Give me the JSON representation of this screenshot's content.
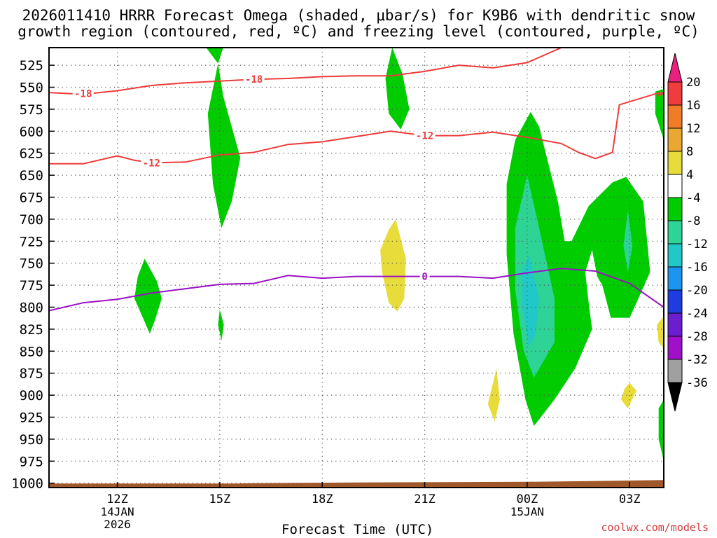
{
  "title": {
    "line1": "2026011410 HRRR Forecast Omega (shaded, μbar/s) for K9B6 with dendritic snow",
    "line2": "growth region (contoured, red, ºC) and freezing level (contoured, purple, ºC)"
  },
  "xlabel": "Forecast Time (UTC)",
  "credit": "coolwx.com/models",
  "chart_data": {
    "type": "time-height cross section",
    "station": "K9B6",
    "run": "2026011410",
    "model": "HRRR",
    "x_start_hour": 10,
    "x_end_hour": 28,
    "y_range_hPa": [
      1005,
      505
    ],
    "y_ticks": [
      525,
      550,
      575,
      600,
      625,
      650,
      675,
      700,
      725,
      750,
      775,
      800,
      825,
      850,
      875,
      900,
      925,
      950,
      975,
      1000
    ],
    "x_ticks": [
      {
        "hour": 12,
        "label": "12Z",
        "sub1": "14JAN",
        "sub2": "2026"
      },
      {
        "hour": 15,
        "label": "15Z",
        "sub1": "",
        "sub2": ""
      },
      {
        "hour": 18,
        "label": "18Z",
        "sub1": "",
        "sub2": ""
      },
      {
        "hour": 21,
        "label": "21Z",
        "sub1": "",
        "sub2": ""
      },
      {
        "hour": 24,
        "label": "00Z",
        "sub1": "15JAN",
        "sub2": ""
      },
      {
        "hour": 27,
        "label": "03Z",
        "sub1": "",
        "sub2": ""
      }
    ],
    "colorbar": {
      "labels": [
        "20",
        "16",
        "12",
        "8",
        "4",
        "-4",
        "-8",
        "-12",
        "-16",
        "-20",
        "-24",
        "-28",
        "-32",
        "-36"
      ],
      "colors": [
        "#e8207e",
        "#f03c3c",
        "#f07c28",
        "#e8a832",
        "#e8dc3a",
        "#ffffff",
        "#00cc00",
        "#2ed496",
        "#20c8c8",
        "#1a96f0",
        "#1e3ce0",
        "#6a1ed0",
        "#a010c8",
        "#a0a0a0",
        "#000000"
      ]
    },
    "contours": [
      {
        "name": "dendritic-top-minus18",
        "label": "-18",
        "color": "#ee3b3b",
        "points": [
          [
            10,
            556
          ],
          [
            11,
            558
          ],
          [
            12,
            554
          ],
          [
            13,
            548
          ],
          [
            14,
            545
          ],
          [
            15,
            543
          ],
          [
            16,
            541
          ],
          [
            17,
            540
          ],
          [
            18,
            538
          ],
          [
            19,
            537
          ],
          [
            20,
            537
          ],
          [
            21,
            532
          ],
          [
            22,
            525
          ],
          [
            23,
            528
          ],
          [
            24,
            522
          ],
          [
            25,
            505
          ]
        ],
        "label_positions": [
          [
            11,
            557
          ],
          [
            16,
            541
          ]
        ]
      },
      {
        "name": "dendritic-right-minus18",
        "label": "",
        "color": "#ee3b3b",
        "points": [
          [
            27.8,
            560
          ],
          [
            28,
            557
          ]
        ],
        "label_positions": []
      },
      {
        "name": "dendritic-bottom-minus12",
        "label": "-12",
        "color": "#ee3b3b",
        "points": [
          [
            10,
            637
          ],
          [
            11,
            637
          ],
          [
            12,
            628
          ],
          [
            12.5,
            633
          ],
          [
            13,
            636
          ],
          [
            14,
            635
          ],
          [
            15,
            627
          ],
          [
            16,
            624
          ],
          [
            17,
            615
          ],
          [
            18,
            612
          ],
          [
            19,
            606
          ],
          [
            20,
            600
          ],
          [
            21,
            605
          ],
          [
            22,
            605
          ],
          [
            23,
            601
          ],
          [
            24,
            607
          ],
          [
            25,
            614
          ],
          [
            25.5,
            624
          ],
          [
            26,
            631
          ],
          [
            26.5,
            624
          ],
          [
            26.7,
            570
          ],
          [
            27.8,
            557
          ],
          [
            28,
            556
          ]
        ],
        "label_positions": [
          [
            13,
            636
          ],
          [
            21,
            605
          ]
        ]
      },
      {
        "name": "freezing-level-0",
        "label": "0",
        "color": "#9a10c4",
        "points": [
          [
            10,
            804
          ],
          [
            11,
            795
          ],
          [
            12,
            791
          ],
          [
            13,
            784
          ],
          [
            14,
            779
          ],
          [
            15,
            774
          ],
          [
            16,
            773
          ],
          [
            17,
            764
          ],
          [
            18,
            767
          ],
          [
            19,
            765
          ],
          [
            20,
            765
          ],
          [
            21,
            765
          ],
          [
            22,
            765
          ],
          [
            23,
            767
          ],
          [
            24,
            761
          ],
          [
            25,
            756
          ],
          [
            26,
            759
          ],
          [
            27,
            773
          ],
          [
            28,
            800
          ]
        ],
        "label_positions": [
          [
            21,
            765
          ]
        ]
      }
    ],
    "shaded_regions": [
      {
        "name": "green-15z-upper",
        "value": "-4 to -8",
        "color": "#00cc00",
        "points": [
          [
            14.6,
            505
          ],
          [
            15.1,
            505
          ],
          [
            14.95,
            523
          ],
          [
            15.1,
            560
          ],
          [
            15.6,
            630
          ],
          [
            15.35,
            680
          ],
          [
            15.05,
            710
          ],
          [
            14.8,
            660
          ],
          [
            14.65,
            580
          ],
          [
            14.95,
            523
          ]
        ]
      },
      {
        "name": "green-15z-small",
        "value": "-4 to -8",
        "color": "#00cc00",
        "points": [
          [
            15,
            803
          ],
          [
            15.12,
            820
          ],
          [
            15.05,
            838
          ],
          [
            14.95,
            820
          ]
        ]
      },
      {
        "name": "green-13z",
        "value": "-4 to -8",
        "color": "#00cc00",
        "points": [
          [
            12.8,
            745
          ],
          [
            13.15,
            770
          ],
          [
            13.3,
            790
          ],
          [
            13.1,
            815
          ],
          [
            12.95,
            830
          ],
          [
            12.75,
            812
          ],
          [
            12.5,
            790
          ],
          [
            12.6,
            765
          ]
        ]
      },
      {
        "name": "green-20z",
        "value": "-4 to -8",
        "color": "#00cc00",
        "points": [
          [
            20.05,
            505
          ],
          [
            20.35,
            535
          ],
          [
            20.55,
            575
          ],
          [
            20.3,
            598
          ],
          [
            19.95,
            580
          ],
          [
            19.85,
            540
          ]
        ]
      },
      {
        "name": "yellow-19z",
        "value": "4 to 8",
        "color": "#e8dc3a",
        "points": [
          [
            20.15,
            700
          ],
          [
            20.45,
            745
          ],
          [
            20.4,
            790
          ],
          [
            20.2,
            805
          ],
          [
            19.95,
            795
          ],
          [
            19.75,
            760
          ],
          [
            19.7,
            735
          ],
          [
            19.95,
            712
          ]
        ]
      },
      {
        "name": "yellow-23z",
        "value": "4 to 8",
        "color": "#e8dc3a",
        "points": [
          [
            23.1,
            870
          ],
          [
            23.2,
            905
          ],
          [
            23.05,
            930
          ],
          [
            22.85,
            910
          ]
        ]
      },
      {
        "name": "yellow-03z",
        "value": "4 to 8",
        "color": "#e8dc3a",
        "points": [
          [
            27,
            886
          ],
          [
            27.2,
            895
          ],
          [
            26.95,
            915
          ],
          [
            26.75,
            905
          ],
          [
            26.85,
            893
          ]
        ]
      },
      {
        "name": "yellow-right-edge",
        "value": "4 to 8",
        "color": "#e8dc3a",
        "points": [
          [
            28,
            810
          ],
          [
            27.8,
            820
          ],
          [
            27.85,
            840
          ],
          [
            28,
            847
          ]
        ]
      },
      {
        "name": "green-right-upper",
        "value": "-4 to -8",
        "color": "#00cc00",
        "points": [
          [
            27.75,
            555
          ],
          [
            28,
            552
          ],
          [
            28,
            610
          ],
          [
            27.75,
            580
          ]
        ]
      },
      {
        "name": "green-right-lower",
        "value": "-4 to -8",
        "color": "#00cc00",
        "points": [
          [
            28,
            905
          ],
          [
            27.85,
            915
          ],
          [
            27.85,
            950
          ],
          [
            28,
            975
          ]
        ]
      },
      {
        "name": "green-00z-large",
        "value": "-4 to -8",
        "color": "#00cc00",
        "points": [
          [
            24.1,
            578
          ],
          [
            24.35,
            595
          ],
          [
            24.9,
            680
          ],
          [
            25.1,
            725
          ],
          [
            25.3,
            725
          ],
          [
            25.8,
            685
          ],
          [
            26.5,
            658
          ],
          [
            26.9,
            652
          ],
          [
            27.4,
            680
          ],
          [
            27.6,
            760
          ],
          [
            27.2,
            795
          ],
          [
            27,
            812
          ],
          [
            26.45,
            812
          ],
          [
            26.2,
            775
          ],
          [
            26.05,
            765
          ],
          [
            25.9,
            735
          ],
          [
            25.7,
            760
          ],
          [
            25.8,
            795
          ],
          [
            25.9,
            825
          ],
          [
            25.4,
            870
          ],
          [
            24.8,
            905
          ],
          [
            24.2,
            935
          ],
          [
            23.95,
            905
          ],
          [
            23.6,
            830
          ],
          [
            23.4,
            740
          ],
          [
            23.4,
            660
          ],
          [
            23.65,
            610
          ]
        ]
      },
      {
        "name": "teal-00z",
        "value": "-8 to -12",
        "color": "#2ed496",
        "points": [
          [
            24,
            650
          ],
          [
            24.35,
            710
          ],
          [
            24.8,
            790
          ],
          [
            24.8,
            840
          ],
          [
            24.2,
            880
          ],
          [
            23.9,
            850
          ],
          [
            23.65,
            780
          ],
          [
            23.65,
            710
          ]
        ]
      },
      {
        "name": "teal-03z",
        "value": "-8 to -12",
        "color": "#2ed496",
        "points": [
          [
            26.95,
            690
          ],
          [
            27.08,
            730
          ],
          [
            26.95,
            760
          ],
          [
            26.82,
            730
          ]
        ]
      },
      {
        "name": "cyan-00z",
        "value": "-12 to -16",
        "color": "#20c8c8",
        "points": [
          [
            24.05,
            740
          ],
          [
            24.35,
            790
          ],
          [
            24.25,
            830
          ],
          [
            24.05,
            845
          ],
          [
            23.85,
            800
          ],
          [
            23.85,
            760
          ]
        ]
      }
    ],
    "terrain_color": "#a0582a"
  }
}
